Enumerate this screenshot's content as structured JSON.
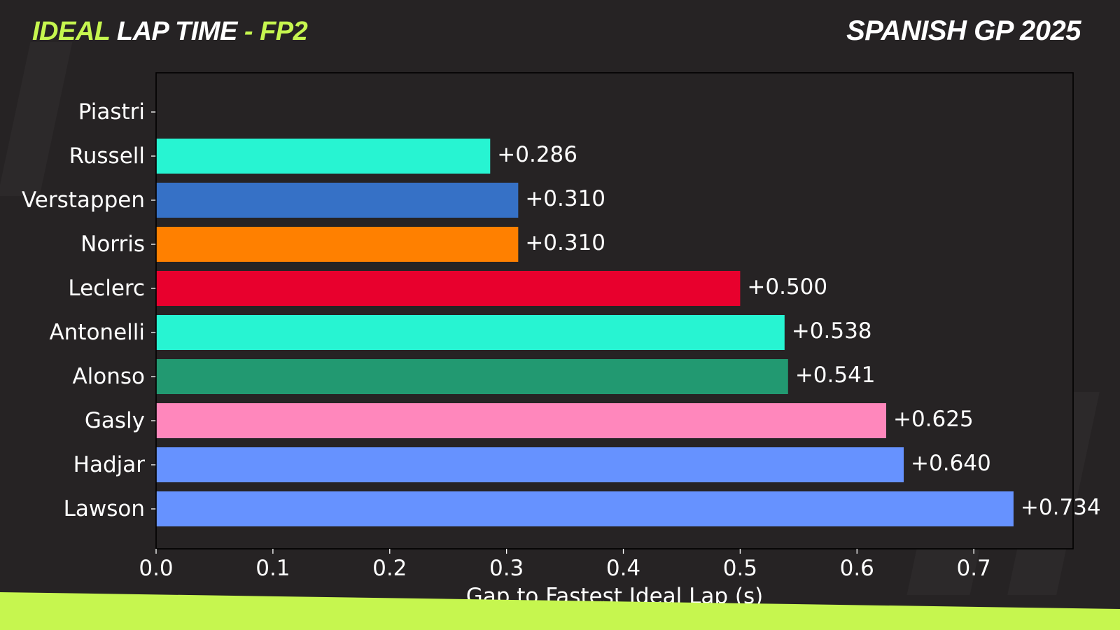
{
  "header": {
    "title_part1": "IDEAL",
    "title_part2": " LAP TIME ",
    "title_part3": "- FP2",
    "event": "SPANISH GP 2025"
  },
  "colors": {
    "accent": "#c6f64f",
    "background": "#262324",
    "plot_border": "#000000",
    "text": "#ffffff"
  },
  "chart_data": {
    "type": "bar",
    "orientation": "horizontal",
    "categories": [
      "Piastri",
      "Russell",
      "Verstappen",
      "Norris",
      "Leclerc",
      "Antonelli",
      "Alonso",
      "Gasly",
      "Hadjar",
      "Lawson"
    ],
    "values": [
      0,
      0.286,
      0.31,
      0.31,
      0.5,
      0.538,
      0.541,
      0.625,
      0.64,
      0.734
    ],
    "data_labels": [
      "",
      "+0.286",
      "+0.310",
      "+0.310",
      "+0.500",
      "+0.538",
      "+0.541",
      "+0.625",
      "+0.640",
      "+0.734"
    ],
    "bar_colors": [
      "#ff8000",
      "#27f4d2",
      "#3671c6",
      "#ff8000",
      "#e8002d",
      "#27f4d2",
      "#229971",
      "#ff87bc",
      "#6692ff",
      "#6692ff"
    ],
    "xlabel": "Gap to Fastest Ideal Lap (s)",
    "ylabel": "",
    "xlim": [
      0,
      0.785
    ],
    "xticks": [
      0.0,
      0.1,
      0.2,
      0.3,
      0.4,
      0.5,
      0.6,
      0.7
    ],
    "xtick_labels": [
      "0.0",
      "0.1",
      "0.2",
      "0.3",
      "0.4",
      "0.5",
      "0.6",
      "0.7"
    ],
    "grid": false,
    "legend": "none"
  }
}
